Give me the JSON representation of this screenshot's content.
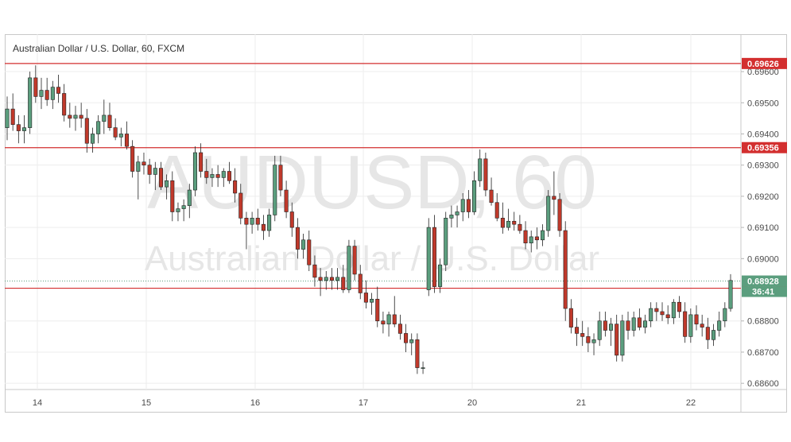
{
  "header": {
    "title": "Australian Dollar / U.S. Dollar, 60, FXCM"
  },
  "watermark": {
    "symbol": "AUDUSD, 60",
    "name": "Australian Dollar / U.S. Dollar"
  },
  "chart_data": {
    "type": "candlestick",
    "title": "Australian Dollar / U.S. Dollar, 60, FXCM",
    "ylim": [
      0.6858,
      0.6972
    ],
    "y_ticks": [
      "0.69600",
      "0.69500",
      "0.69400",
      "0.69300",
      "0.69200",
      "0.69100",
      "0.69000",
      "0.68800",
      "0.68700",
      "0.68600"
    ],
    "x_ticks": [
      "14",
      "15",
      "16",
      "17",
      "20",
      "21",
      "22"
    ],
    "grid": true,
    "horizontal_levels": [
      {
        "label": "0.69626",
        "value": 0.69626,
        "color": "#d32f2f"
      },
      {
        "label": "0.69356",
        "value": 0.69356,
        "color": "#d32f2f"
      },
      {
        "label": "0.68905",
        "value": 0.68905,
        "color": "#d32f2f"
      }
    ],
    "current_price": {
      "label": "0.68928",
      "value": 0.68928,
      "countdown": "36:41",
      "color": "#5b9e7e"
    },
    "colors": {
      "up": "#5b9e7e",
      "down": "#c0392b",
      "level": "#d32f2f"
    },
    "candles": [
      [
        0.6942,
        0.6952,
        0.6938,
        0.6948
      ],
      [
        0.6948,
        0.6953,
        0.6941,
        0.6943
      ],
      [
        0.6943,
        0.6946,
        0.6937,
        0.6941
      ],
      [
        0.6941,
        0.6946,
        0.6937,
        0.6942
      ],
      [
        0.6942,
        0.696,
        0.694,
        0.6958
      ],
      [
        0.6958,
        0.6962,
        0.695,
        0.6952
      ],
      [
        0.6952,
        0.6958,
        0.6948,
        0.6954
      ],
      [
        0.6954,
        0.6958,
        0.6949,
        0.6951
      ],
      [
        0.6951,
        0.6957,
        0.6948,
        0.6955
      ],
      [
        0.6955,
        0.6959,
        0.695,
        0.6953
      ],
      [
        0.6953,
        0.6956,
        0.6944,
        0.6946
      ],
      [
        0.6946,
        0.695,
        0.6942,
        0.6945
      ],
      [
        0.6945,
        0.6949,
        0.6941,
        0.6946
      ],
      [
        0.6946,
        0.695,
        0.6942,
        0.6945
      ],
      [
        0.6945,
        0.6948,
        0.6934,
        0.6937
      ],
      [
        0.6937,
        0.6942,
        0.6934,
        0.694
      ],
      [
        0.694,
        0.6946,
        0.6937,
        0.6944
      ],
      [
        0.6944,
        0.6951,
        0.694,
        0.6946
      ],
      [
        0.6946,
        0.695,
        0.6941,
        0.6942
      ],
      [
        0.6942,
        0.6945,
        0.6938,
        0.6939
      ],
      [
        0.6939,
        0.6942,
        0.6936,
        0.694
      ],
      [
        0.694,
        0.6944,
        0.6935,
        0.6936
      ],
      [
        0.6936,
        0.6938,
        0.6926,
        0.6928
      ],
      [
        0.6928,
        0.6933,
        0.6919,
        0.6931
      ],
      [
        0.6931,
        0.6934,
        0.6927,
        0.693
      ],
      [
        0.693,
        0.6932,
        0.6924,
        0.6927
      ],
      [
        0.6927,
        0.6931,
        0.6922,
        0.6929
      ],
      [
        0.6929,
        0.6931,
        0.6922,
        0.6923
      ],
      [
        0.6923,
        0.6927,
        0.6919,
        0.6925
      ],
      [
        0.6925,
        0.6928,
        0.6912,
        0.6915
      ],
      [
        0.6915,
        0.6918,
        0.6912,
        0.6916
      ],
      [
        0.6916,
        0.6919,
        0.6912,
        0.6917
      ],
      [
        0.6917,
        0.6924,
        0.6913,
        0.6922
      ],
      [
        0.6922,
        0.6936,
        0.692,
        0.6934
      ],
      [
        0.6934,
        0.6937,
        0.6926,
        0.6928
      ],
      [
        0.6928,
        0.6932,
        0.6924,
        0.6926
      ],
      [
        0.6926,
        0.6929,
        0.6923,
        0.6927
      ],
      [
        0.6927,
        0.693,
        0.6923,
        0.6926
      ],
      [
        0.6926,
        0.6929,
        0.6923,
        0.6928
      ],
      [
        0.6928,
        0.6931,
        0.6924,
        0.6925
      ],
      [
        0.6925,
        0.6929,
        0.6918,
        0.6921
      ],
      [
        0.6921,
        0.6924,
        0.6911,
        0.6913
      ],
      [
        0.6913,
        0.6915,
        0.6903,
        0.6911
      ],
      [
        0.6911,
        0.6915,
        0.6908,
        0.6913
      ],
      [
        0.6913,
        0.6916,
        0.6909,
        0.6911
      ],
      [
        0.6911,
        0.6914,
        0.6906,
        0.6909
      ],
      [
        0.6909,
        0.6916,
        0.6907,
        0.6914
      ],
      [
        0.6914,
        0.6933,
        0.6912,
        0.693
      ],
      [
        0.693,
        0.6933,
        0.692,
        0.6922
      ],
      [
        0.6922,
        0.6925,
        0.6913,
        0.6915
      ],
      [
        0.6915,
        0.6918,
        0.6907,
        0.691
      ],
      [
        0.691,
        0.6913,
        0.69,
        0.6903
      ],
      [
        0.6903,
        0.6908,
        0.69,
        0.6906
      ],
      [
        0.6906,
        0.6909,
        0.6896,
        0.6898
      ],
      [
        0.6898,
        0.6901,
        0.6891,
        0.6894
      ],
      [
        0.6894,
        0.6897,
        0.6888,
        0.6893
      ],
      [
        0.6893,
        0.6896,
        0.689,
        0.6894
      ],
      [
        0.6894,
        0.6897,
        0.689,
        0.6893
      ],
      [
        0.6893,
        0.6897,
        0.689,
        0.6894
      ],
      [
        0.6894,
        0.6898,
        0.6889,
        0.689
      ],
      [
        0.689,
        0.6906,
        0.6889,
        0.6904
      ],
      [
        0.6904,
        0.6906,
        0.6893,
        0.6895
      ],
      [
        0.6895,
        0.6898,
        0.6887,
        0.6889
      ],
      [
        0.6889,
        0.6893,
        0.6884,
        0.6886
      ],
      [
        0.6886,
        0.6889,
        0.6882,
        0.6887
      ],
      [
        0.6887,
        0.6891,
        0.6878,
        0.688
      ],
      [
        0.688,
        0.6883,
        0.6876,
        0.6879
      ],
      [
        0.6879,
        0.6883,
        0.6875,
        0.6882
      ],
      [
        0.6882,
        0.6888,
        0.6878,
        0.6879
      ],
      [
        0.6879,
        0.6882,
        0.6874,
        0.6876
      ],
      [
        0.6876,
        0.6879,
        0.687,
        0.6873
      ],
      [
        0.6873,
        0.6876,
        0.6869,
        0.6874
      ],
      [
        0.6874,
        0.6876,
        0.6863,
        0.6865
      ],
      [
        0.6865,
        0.6867,
        0.6863,
        0.6865
      ],
      [
        0.689,
        0.6913,
        0.6888,
        0.691
      ],
      [
        0.691,
        0.6914,
        0.6889,
        0.6891
      ],
      [
        0.6891,
        0.69,
        0.6889,
        0.6898
      ],
      [
        0.6898,
        0.6915,
        0.6896,
        0.6913
      ],
      [
        0.6913,
        0.6917,
        0.691,
        0.6914
      ],
      [
        0.6914,
        0.6917,
        0.691,
        0.6915
      ],
      [
        0.6915,
        0.6921,
        0.6912,
        0.6919
      ],
      [
        0.6919,
        0.6922,
        0.6913,
        0.6915
      ],
      [
        0.6915,
        0.6928,
        0.6914,
        0.6925
      ],
      [
        0.6925,
        0.6935,
        0.6923,
        0.6932
      ],
      [
        0.6932,
        0.6934,
        0.692,
        0.6922
      ],
      [
        0.6922,
        0.6926,
        0.6917,
        0.6918
      ],
      [
        0.6918,
        0.6921,
        0.6912,
        0.6913
      ],
      [
        0.6913,
        0.6918,
        0.6908,
        0.691
      ],
      [
        0.691,
        0.6916,
        0.6909,
        0.6912
      ],
      [
        0.6912,
        0.6915,
        0.6909,
        0.6911
      ],
      [
        0.6911,
        0.6914,
        0.6908,
        0.6909
      ],
      [
        0.6909,
        0.6912,
        0.6903,
        0.6905
      ],
      [
        0.6905,
        0.6909,
        0.6902,
        0.6907
      ],
      [
        0.6907,
        0.691,
        0.6903,
        0.6906
      ],
      [
        0.6906,
        0.6911,
        0.6904,
        0.6909
      ],
      [
        0.6909,
        0.6922,
        0.6907,
        0.692
      ],
      [
        0.692,
        0.6928,
        0.6914,
        0.6919
      ],
      [
        0.6919,
        0.6921,
        0.6907,
        0.6909
      ],
      [
        0.6909,
        0.6912,
        0.688,
        0.6884
      ],
      [
        0.6884,
        0.6887,
        0.6876,
        0.6878
      ],
      [
        0.6878,
        0.6881,
        0.6872,
        0.6876
      ],
      [
        0.6876,
        0.688,
        0.6872,
        0.6875
      ],
      [
        0.6875,
        0.6878,
        0.687,
        0.6873
      ],
      [
        0.6873,
        0.6876,
        0.6869,
        0.6874
      ],
      [
        0.6874,
        0.6883,
        0.6872,
        0.688
      ],
      [
        0.688,
        0.6883,
        0.6875,
        0.6877
      ],
      [
        0.6877,
        0.6881,
        0.6872,
        0.6879
      ],
      [
        0.6879,
        0.6882,
        0.6867,
        0.6869
      ],
      [
        0.6869,
        0.6882,
        0.6867,
        0.688
      ],
      [
        0.688,
        0.6883,
        0.6874,
        0.6877
      ],
      [
        0.6877,
        0.6883,
        0.6875,
        0.6881
      ],
      [
        0.6881,
        0.6884,
        0.6877,
        0.6878
      ],
      [
        0.6878,
        0.6882,
        0.6876,
        0.688
      ],
      [
        0.688,
        0.6886,
        0.6878,
        0.6884
      ],
      [
        0.6884,
        0.6886,
        0.688,
        0.6883
      ],
      [
        0.6883,
        0.6886,
        0.688,
        0.6882
      ],
      [
        0.6882,
        0.6885,
        0.6879,
        0.6881
      ],
      [
        0.6881,
        0.6887,
        0.6879,
        0.6886
      ],
      [
        0.6886,
        0.6888,
        0.6881,
        0.6883
      ],
      [
        0.6883,
        0.6886,
        0.6873,
        0.6875
      ],
      [
        0.6875,
        0.6884,
        0.6873,
        0.6882
      ],
      [
        0.6882,
        0.6885,
        0.6877,
        0.6879
      ],
      [
        0.6879,
        0.6882,
        0.6875,
        0.6878
      ],
      [
        0.6878,
        0.6881,
        0.6871,
        0.6874
      ],
      [
        0.6874,
        0.6879,
        0.6872,
        0.6877
      ],
      [
        0.6877,
        0.6883,
        0.6875,
        0.688
      ],
      [
        0.688,
        0.6886,
        0.6878,
        0.6884
      ],
      [
        0.6884,
        0.6895,
        0.6883,
        0.6893
      ]
    ]
  }
}
